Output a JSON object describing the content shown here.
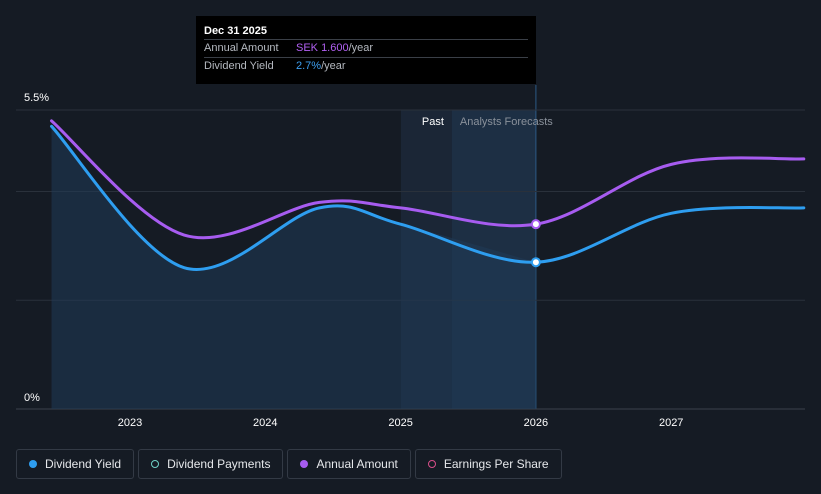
{
  "tooltip": {
    "date": "Dec 31 2025",
    "rows": [
      {
        "label": "Annual Amount",
        "value": "SEK 1.600",
        "unit": "/year"
      },
      {
        "label": "Dividend Yield",
        "value": "2.7%",
        "unit": "/year"
      }
    ]
  },
  "legend": {
    "items": [
      {
        "label": "Dividend Yield",
        "color": "#2e9ef0",
        "filled": true
      },
      {
        "label": "Dividend Payments",
        "color": "#6fd3c8",
        "filled": false
      },
      {
        "label": "Annual Amount",
        "color": "#a75cf0",
        "filled": true
      },
      {
        "label": "Earnings Per Share",
        "color": "#d94f8a",
        "filled": false
      }
    ]
  },
  "chart_data": {
    "type": "line",
    "y_axis": {
      "ticks": [
        "5.5%",
        "0%"
      ],
      "ylim": [
        0,
        5.5
      ]
    },
    "x_axis": {
      "ticks": [
        "2023",
        "2024",
        "2025",
        "2026",
        "2027"
      ]
    },
    "regions": {
      "past_label": "Past",
      "forecast_label": "Analysts Forecasts",
      "forecast_start": 2026.0
    },
    "series": [
      {
        "name": "Dividend Yield",
        "color": "#2e9ef0",
        "points": [
          [
            2022.42,
            5.2
          ],
          [
            2023.4,
            2.6
          ],
          [
            2024.4,
            3.7
          ],
          [
            2025.0,
            3.4
          ],
          [
            2026.0,
            2.7
          ],
          [
            2027.0,
            3.6
          ],
          [
            2027.98,
            3.7
          ]
        ]
      },
      {
        "name": "Annual Amount",
        "color": "#a75cf0",
        "points": [
          [
            2022.42,
            5.3
          ],
          [
            2023.4,
            3.2
          ],
          [
            2024.4,
            3.8
          ],
          [
            2025.0,
            3.7
          ],
          [
            2026.0,
            3.4
          ],
          [
            2027.0,
            4.5
          ],
          [
            2027.98,
            4.6
          ]
        ]
      }
    ],
    "highlight_x": 2026.0
  }
}
